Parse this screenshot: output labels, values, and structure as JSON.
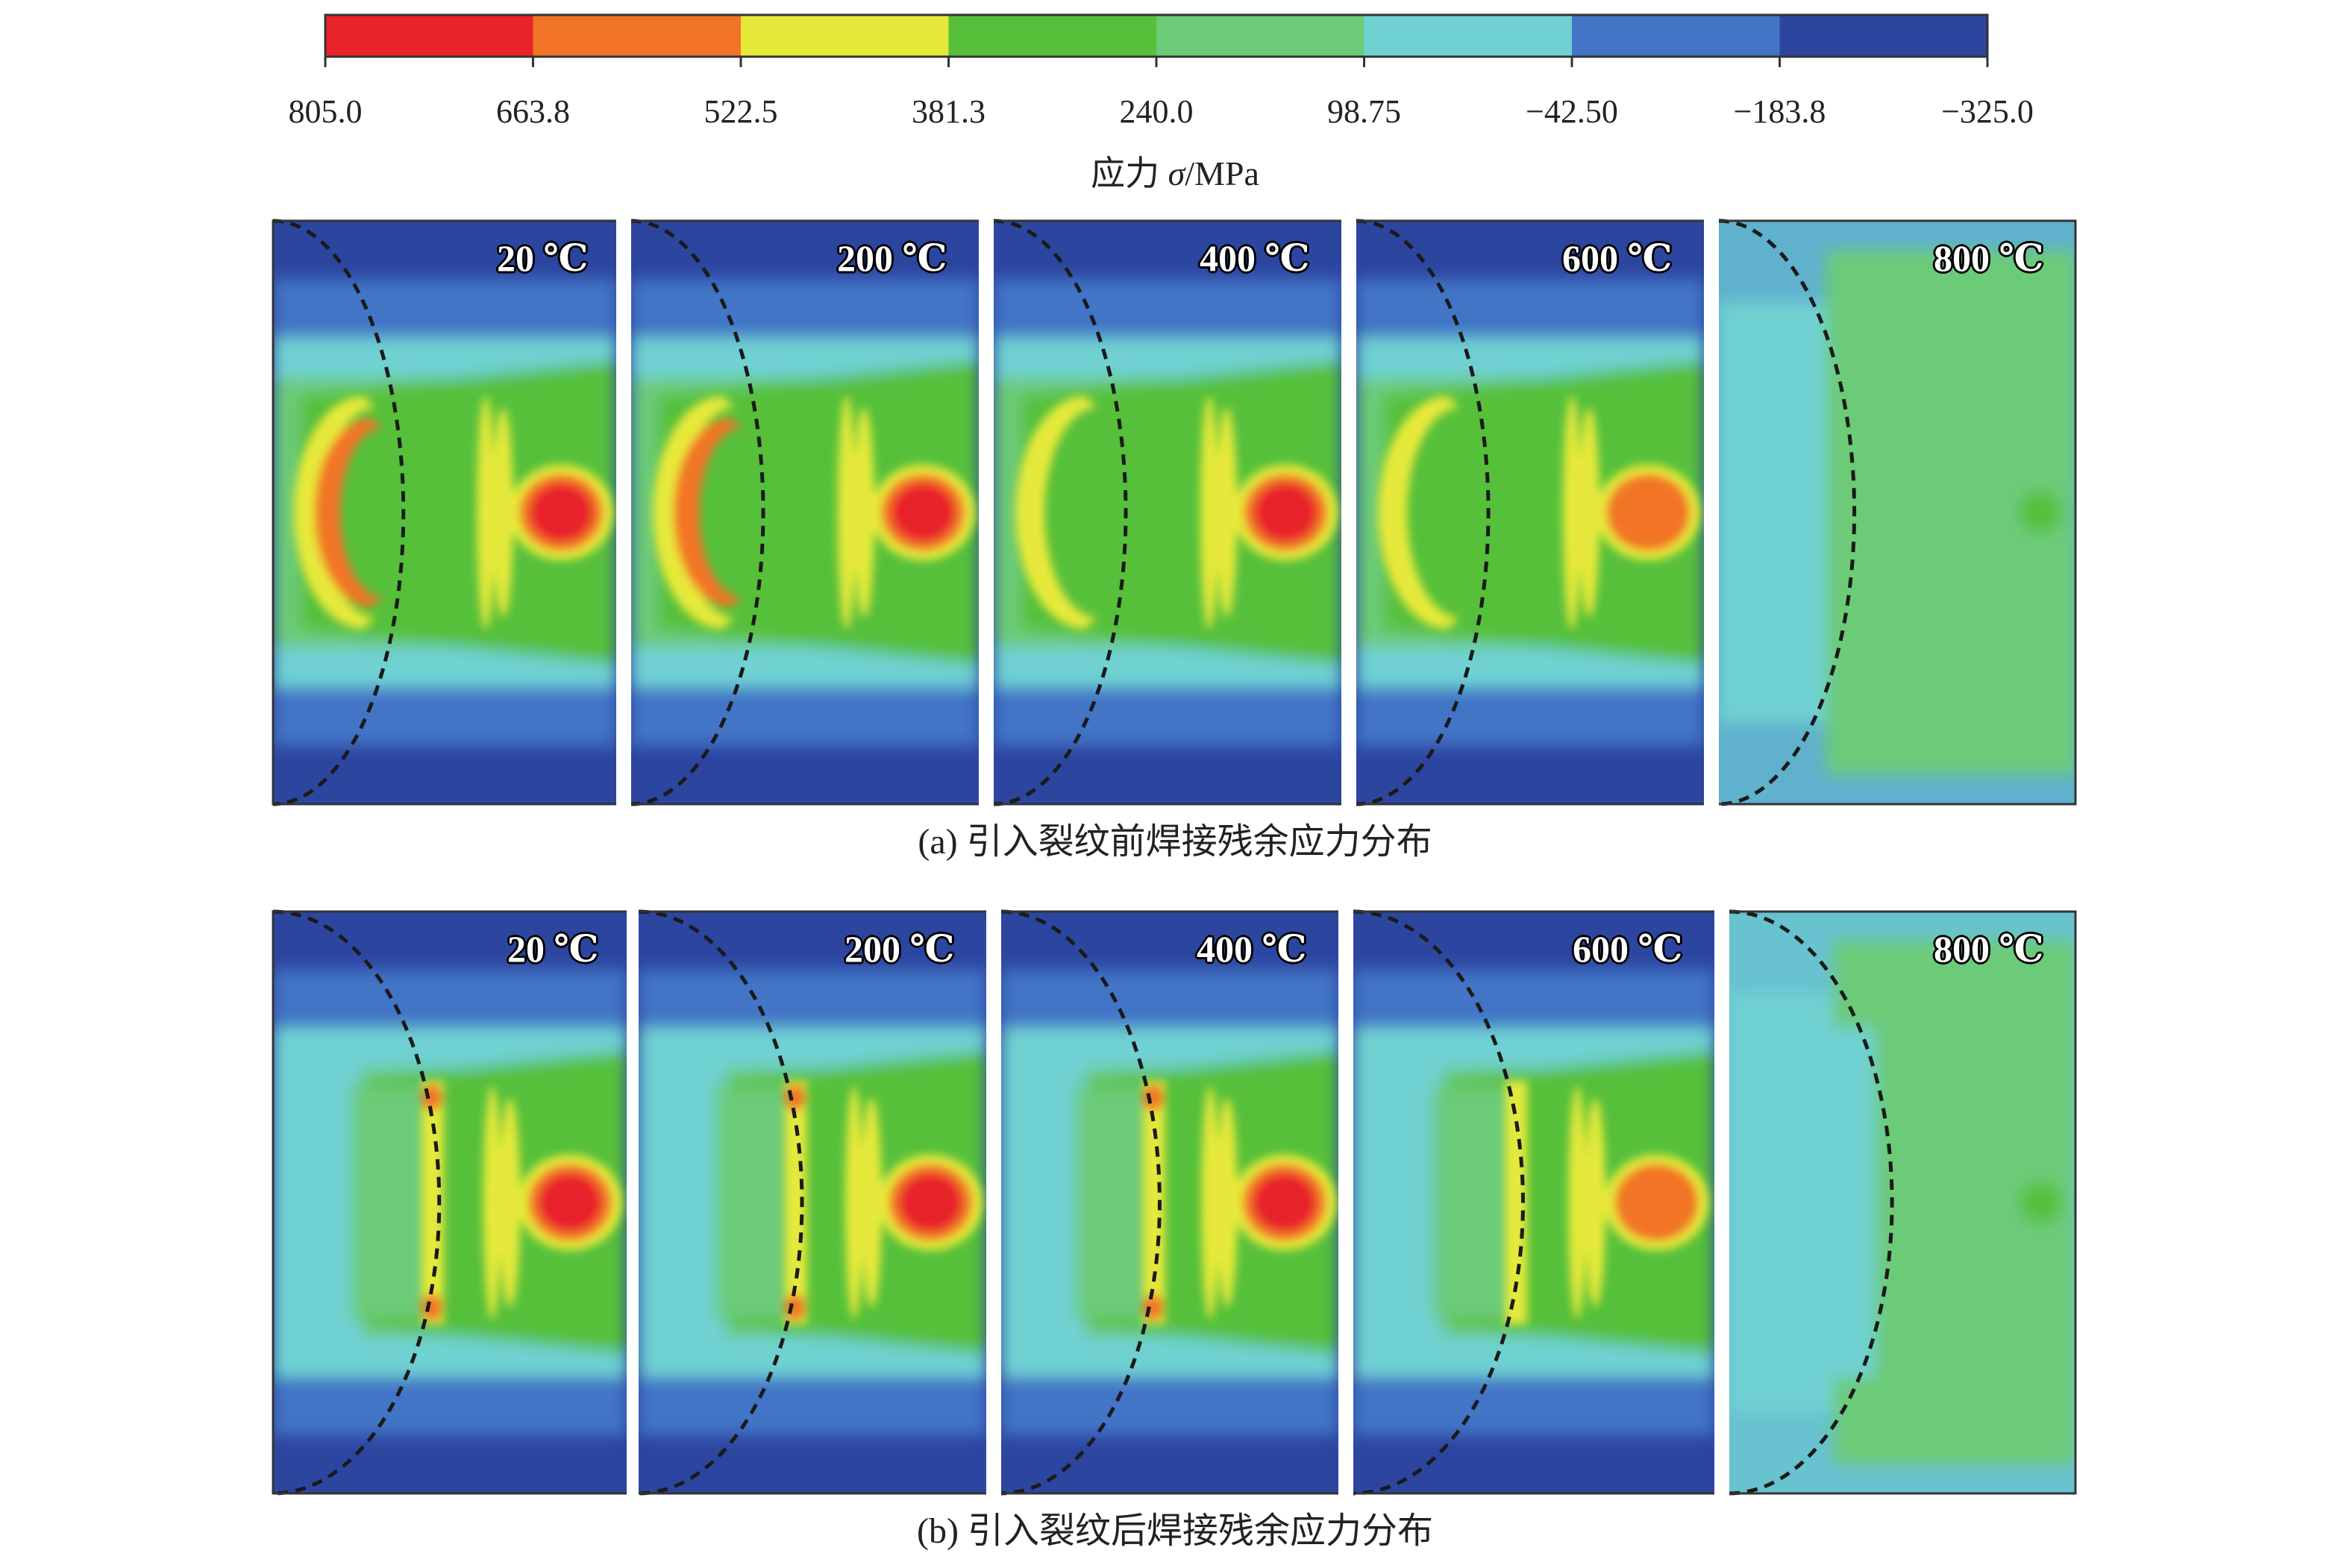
{
  "colorbar": {
    "colors": [
      "#e8232b",
      "#f27426",
      "#e6e93a",
      "#56c03a",
      "#6ccb78",
      "#6fd1d2",
      "#4275c6",
      "#2c46a0"
    ],
    "tick_labels": [
      "805.0",
      "663.8",
      "522.5",
      "381.3",
      "240.0",
      "98.75",
      "−42.50",
      "−183.8",
      "−325.0"
    ],
    "title_prefix": "应力 ",
    "title_symbol": "σ",
    "title_unit": "/MPa"
  },
  "rows": [
    {
      "caption": "(a) 引入裂纹前焊接残余应力分布",
      "panels": [
        {
          "label": "20 ℃",
          "level": 0
        },
        {
          "label": "200 ℃",
          "level": 1
        },
        {
          "label": "400 ℃",
          "level": 2
        },
        {
          "label": "600 ℃",
          "level": 3
        },
        {
          "label": "800 ℃",
          "level": 4
        }
      ]
    },
    {
      "caption": "(b) 引入裂纹后焊接残余应力分布",
      "panels": [
        {
          "label": "20 ℃",
          "level": 0
        },
        {
          "label": "200 ℃",
          "level": 1
        },
        {
          "label": "400 ℃",
          "level": 2
        },
        {
          "label": "600 ℃",
          "level": 3
        },
        {
          "label": "800 ℃",
          "level": 4
        }
      ]
    }
  ]
}
